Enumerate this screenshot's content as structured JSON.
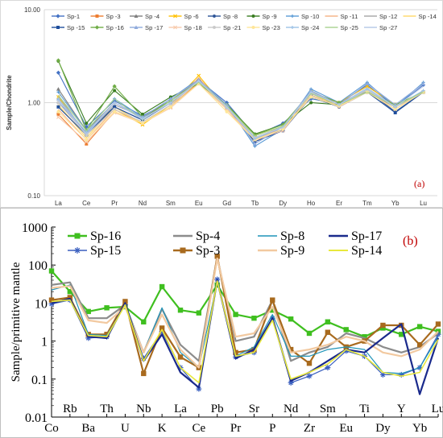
{
  "chart_data": [
    {
      "type": "line",
      "panel_label": "(a)",
      "ylabel": "Sample/Chondrite",
      "yscale": "log",
      "ylim": [
        0.1,
        10
      ],
      "yticks": [
        "0.10",
        "1.00",
        "10.00"
      ],
      "grid": true,
      "legend_placement": "top",
      "categories": [
        "La",
        "Ce",
        "Pr",
        "Nd",
        "Sm",
        "Eu",
        "Gd",
        "Tb",
        "Dy",
        "Ho",
        "Er",
        "Tm",
        "Yb",
        "Lu"
      ],
      "series": [
        {
          "name": "Sp-1",
          "color": "#4472c4",
          "marker": "diamond",
          "values": [
            2.1,
            0.55,
            1.05,
            0.72,
            1.05,
            1.75,
            1.0,
            0.44,
            0.6,
            1.1,
            0.98,
            1.55,
            0.9,
            1.55
          ]
        },
        {
          "name": "Sp -3",
          "color": "#ed7d31",
          "marker": "square",
          "values": [
            0.75,
            0.36,
            0.8,
            0.6,
            0.9,
            1.65,
            0.88,
            0.4,
            0.52,
            1.2,
            0.95,
            1.3,
            0.85,
            1.3
          ]
        },
        {
          "name": "Sp -4",
          "color": "#7f7f7f",
          "marker": "triangle",
          "values": [
            1.4,
            0.5,
            1.0,
            0.68,
            1.05,
            1.75,
            0.9,
            0.42,
            0.55,
            1.3,
            0.95,
            1.3,
            0.9,
            1.3
          ]
        },
        {
          "name": "Sp -6",
          "color": "#ffc000",
          "marker": "x",
          "values": [
            1.15,
            0.45,
            0.85,
            0.58,
            0.95,
            1.95,
            0.85,
            0.45,
            0.55,
            1.3,
            1.0,
            1.5,
            0.95,
            1.3
          ]
        },
        {
          "name": "Sp -8",
          "color": "#2e5597",
          "marker": "star",
          "values": [
            1.0,
            0.48,
            0.9,
            0.65,
            1.0,
            1.7,
            0.9,
            0.41,
            0.5,
            1.15,
            0.9,
            1.35,
            0.8,
            1.3
          ]
        },
        {
          "name": "Sp -9",
          "color": "#3a7d22",
          "marker": "circle",
          "values": [
            2.8,
            0.6,
            1.35,
            0.75,
            1.15,
            1.6,
            0.95,
            0.46,
            0.58,
            1.0,
            0.95,
            1.3,
            0.9,
            1.3
          ]
        },
        {
          "name": "Sp -10",
          "color": "#5b9bd5",
          "marker": "plus",
          "values": [
            1.3,
            0.5,
            1.1,
            0.7,
            1.1,
            1.8,
            0.95,
            0.34,
            0.52,
            1.4,
            1.0,
            1.65,
            0.9,
            1.65
          ]
        },
        {
          "name": "Sp -11",
          "color": "#f4b183",
          "marker": "none",
          "values": [
            0.85,
            0.4,
            0.85,
            0.6,
            0.9,
            1.85,
            0.85,
            0.38,
            0.55,
            1.25,
            1.0,
            1.35,
            0.85,
            1.35
          ]
        },
        {
          "name": "Sp -12",
          "color": "#a5a5a5",
          "marker": "none",
          "values": [
            1.2,
            0.45,
            0.95,
            0.7,
            1.05,
            1.75,
            0.9,
            0.4,
            0.55,
            1.3,
            0.9,
            1.3,
            0.9,
            1.3
          ]
        },
        {
          "name": "Sp -14",
          "color": "#ffd966",
          "marker": "none",
          "values": [
            0.95,
            0.42,
            0.9,
            0.6,
            0.95,
            1.7,
            0.85,
            0.4,
            0.52,
            1.2,
            0.95,
            1.4,
            0.9,
            1.3
          ]
        },
        {
          "name": "Sp -15",
          "color": "#1f4e9c",
          "marker": "square",
          "values": [
            0.9,
            0.45,
            0.9,
            0.65,
            1.0,
            1.7,
            0.9,
            0.38,
            0.5,
            1.2,
            0.9,
            1.3,
            0.78,
            1.3
          ]
        },
        {
          "name": "Sp -16",
          "color": "#70ad47",
          "marker": "diamond",
          "values": [
            2.85,
            0.5,
            1.5,
            0.7,
            1.05,
            1.7,
            0.95,
            0.45,
            0.58,
            1.3,
            1.0,
            1.3,
            0.95,
            1.3
          ]
        },
        {
          "name": "Sp -17",
          "color": "#8faadc",
          "marker": "triangle",
          "values": [
            1.1,
            0.45,
            1.0,
            0.7,
            1.1,
            1.75,
            0.95,
            0.36,
            0.55,
            1.35,
            0.95,
            1.6,
            0.95,
            1.6
          ]
        },
        {
          "name": "Sp -18",
          "color": "#f8cbad",
          "marker": "x",
          "values": [
            0.7,
            0.38,
            0.78,
            0.6,
            0.88,
            1.6,
            0.85,
            0.4,
            0.5,
            1.2,
            0.9,
            1.3,
            0.85,
            1.3
          ]
        },
        {
          "name": "Sp -21",
          "color": "#c9c9c9",
          "marker": "star",
          "values": [
            1.0,
            0.45,
            0.85,
            0.62,
            0.95,
            1.7,
            0.88,
            0.42,
            0.55,
            1.25,
            0.95,
            1.35,
            0.9,
            1.3
          ]
        },
        {
          "name": "Sp -23",
          "color": "#ffe699",
          "marker": "circle",
          "values": [
            0.8,
            0.4,
            0.8,
            0.6,
            0.9,
            1.6,
            0.8,
            0.4,
            0.52,
            1.15,
            0.92,
            1.3,
            0.85,
            1.3
          ]
        },
        {
          "name": "Sp -24",
          "color": "#9dc3e6",
          "marker": "plus",
          "values": [
            1.1,
            0.48,
            1.0,
            0.68,
            1.0,
            1.7,
            0.9,
            0.41,
            0.55,
            1.3,
            0.95,
            1.4,
            0.9,
            1.35
          ]
        },
        {
          "name": "Sp -25",
          "color": "#a9d18e",
          "marker": "none",
          "values": [
            1.2,
            0.5,
            1.1,
            0.65,
            1.05,
            1.65,
            0.92,
            0.44,
            0.56,
            1.25,
            0.95,
            1.3,
            0.92,
            1.3
          ]
        },
        {
          "name": "Sp -27",
          "color": "#b4c7e7",
          "marker": "none",
          "values": [
            1.05,
            0.46,
            1.0,
            0.66,
            1.0,
            1.72,
            0.9,
            0.42,
            0.54,
            1.3,
            0.95,
            1.45,
            0.9,
            1.5
          ]
        }
      ]
    },
    {
      "type": "line",
      "panel_label": "(b)",
      "ylabel": "Sample/primitive mantle",
      "yscale": "log",
      "ylim": [
        0.01,
        1000
      ],
      "yticks": [
        "0.01",
        "0.1",
        "1",
        "10",
        "100",
        "1000"
      ],
      "grid": false,
      "legend_placement": "top",
      "categories_bottom": [
        "Co",
        "Ba",
        "U",
        "K",
        "Ce",
        "Pr",
        "P",
        "Zr",
        "Eu",
        "Dy",
        "Yb"
      ],
      "categories_top": [
        "Rb",
        "Th",
        "Nb",
        "La",
        "Pb",
        "Sr",
        "Nd",
        "Sm",
        "Ti",
        "Y",
        "Lu"
      ],
      "categories": [
        "Co",
        "Rb",
        "Ba",
        "Th",
        "U",
        "Nb",
        "K",
        "La",
        "Ce",
        "Pb",
        "Pr",
        "Sr",
        "P",
        "Nd",
        "Zr",
        "Sm",
        "Eu",
        "Ti",
        "Dy",
        "Y",
        "Yb",
        "Lu"
      ],
      "series": [
        {
          "name": "Sp-16",
          "color": "#3fbf1f",
          "marker": "square-filled",
          "width": 2.2,
          "values": [
            70,
            20,
            6,
            7.5,
            8,
            3.2,
            27,
            6.5,
            5.5,
            30,
            5,
            4,
            6.5,
            3.8,
            1.6,
            3.2,
            2,
            1.3,
            2.2,
            1.5,
            2.4,
            1.8
          ]
        },
        {
          "name": "Sp-15",
          "color": "#3a5fbf",
          "marker": "asterisk",
          "width": 1.2,
          "values": [
            9.5,
            12,
            1.2,
            1.3,
            9,
            0.35,
            1.8,
            0.2,
            0.055,
            42,
            0.38,
            0.5,
            4,
            0.08,
            0.12,
            0.2,
            0.55,
            0.4,
            0.13,
            0.13,
            0.2,
            1.5
          ]
        },
        {
          "name": "Sp-4",
          "color": "#8c8c8c",
          "marker": "none",
          "width": 2.2,
          "values": [
            30,
            35,
            4,
            4,
            9,
            0.5,
            7,
            0.8,
            0.3,
            160,
            1,
            1.3,
            12,
            0.3,
            0.5,
            0.7,
            1.6,
            1.2,
            0.7,
            0.5,
            0.7,
            1.6
          ]
        },
        {
          "name": "Sp-3",
          "color": "#a86a1e",
          "marker": "square-filled",
          "width": 2.2,
          "values": [
            12,
            14,
            1.5,
            1.5,
            11,
            0.14,
            2.2,
            0.38,
            0.2,
            170,
            0.5,
            0.6,
            12,
            0.6,
            0.26,
            1.7,
            0.7,
            1.0,
            2.6,
            2.6,
            0.8,
            2.8
          ]
        },
        {
          "name": "Sp-8",
          "color": "#1f94b8",
          "marker": "none",
          "width": 1.2,
          "values": [
            22,
            30,
            1.5,
            1.4,
            9,
            0.5,
            7.5,
            0.5,
            0.2,
            35,
            0.4,
            0.7,
            5,
            0.4,
            0.4,
            0.6,
            0.7,
            0.6,
            0.15,
            0.14,
            0.2,
            1.3
          ]
        },
        {
          "name": "Sp-9",
          "color": "#f2c9a0",
          "marker": "none",
          "width": 2.2,
          "values": [
            25,
            28,
            3.5,
            3,
            8,
            0.5,
            5,
            0.6,
            0.2,
            150,
            1.3,
            1.6,
            8,
            0.5,
            0.6,
            0.8,
            1.3,
            1.0,
            0.5,
            0.4,
            0.6,
            1.8
          ]
        },
        {
          "name": "Sp-17",
          "color": "#1a2a8c",
          "marker": "none",
          "width": 2.2,
          "values": [
            10,
            13,
            1.3,
            1.2,
            10,
            0.3,
            1.5,
            0.15,
            0.06,
            40,
            0.35,
            0.6,
            4,
            0.09,
            0.15,
            0.3,
            0.6,
            0.5,
            1.2,
            2.8,
            0.04,
            1.2
          ]
        },
        {
          "name": "Sp-14",
          "color": "#e8e83c",
          "marker": "none",
          "width": 1.6,
          "values": [
            11,
            12,
            1.4,
            1.3,
            9,
            0.3,
            2,
            0.2,
            0.08,
            38,
            0.4,
            0.5,
            3.5,
            0.1,
            0.15,
            0.25,
            0.6,
            0.4,
            0.15,
            0.12,
            0.15,
            1.1
          ]
        }
      ]
    }
  ]
}
